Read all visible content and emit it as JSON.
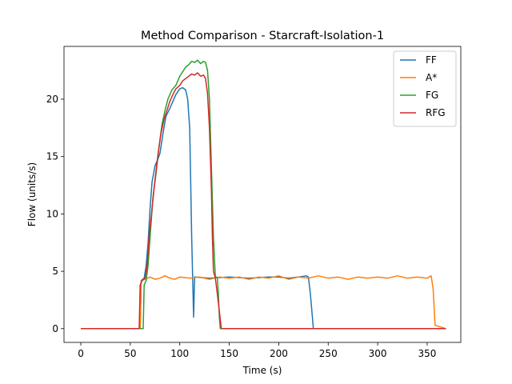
{
  "chart_data": {
    "type": "line",
    "title": "Method Comparison - Starcraft-Isolation-1",
    "xlabel": "Time (s)",
    "ylabel": "Flow (units/s)",
    "xlim": [
      -17,
      384
    ],
    "ylim": [
      -1.2,
      24.6
    ],
    "xticks": [
      0,
      50,
      100,
      150,
      200,
      250,
      300,
      350
    ],
    "yticks": [
      0,
      5,
      10,
      15,
      20
    ],
    "grid": false,
    "legend_position": "top-right",
    "series": [
      {
        "name": "FF",
        "color": "#1f77b4",
        "points": [
          [
            0,
            0
          ],
          [
            60,
            0
          ],
          [
            61,
            4.2
          ],
          [
            64,
            4.4
          ],
          [
            66,
            5.5
          ],
          [
            68,
            7.5
          ],
          [
            70,
            10.5
          ],
          [
            72,
            12.8
          ],
          [
            75,
            14.2
          ],
          [
            78,
            14.8
          ],
          [
            80,
            15.3
          ],
          [
            83,
            17.0
          ],
          [
            86,
            18.5
          ],
          [
            90,
            19.2
          ],
          [
            93,
            19.8
          ],
          [
            96,
            20.4
          ],
          [
            100,
            20.9
          ],
          [
            103,
            21.0
          ],
          [
            106,
            20.8
          ],
          [
            108,
            20.0
          ],
          [
            110,
            17.5
          ],
          [
            111,
            13.0
          ],
          [
            112,
            8.0
          ],
          [
            113,
            4.5
          ],
          [
            114,
            1.0
          ],
          [
            115,
            4.5
          ],
          [
            130,
            4.4
          ],
          [
            150,
            4.5
          ],
          [
            170,
            4.4
          ],
          [
            190,
            4.5
          ],
          [
            200,
            4.5
          ],
          [
            210,
            4.4
          ],
          [
            220,
            4.5
          ],
          [
            228,
            4.6
          ],
          [
            230,
            4.5
          ],
          [
            232,
            3.0
          ],
          [
            234,
            1.0
          ],
          [
            235,
            0
          ],
          [
            369,
            0
          ]
        ]
      },
      {
        "name": "A*",
        "color": "#ff7f0e",
        "points": [
          [
            0,
            0
          ],
          [
            60,
            0
          ],
          [
            61,
            4.2
          ],
          [
            65,
            4.3
          ],
          [
            70,
            4.5
          ],
          [
            75,
            4.3
          ],
          [
            80,
            4.4
          ],
          [
            85,
            4.6
          ],
          [
            90,
            4.4
          ],
          [
            95,
            4.3
          ],
          [
            100,
            4.5
          ],
          [
            110,
            4.4
          ],
          [
            120,
            4.5
          ],
          [
            130,
            4.3
          ],
          [
            140,
            4.5
          ],
          [
            150,
            4.4
          ],
          [
            160,
            4.5
          ],
          [
            170,
            4.3
          ],
          [
            180,
            4.5
          ],
          [
            190,
            4.4
          ],
          [
            200,
            4.6
          ],
          [
            210,
            4.3
          ],
          [
            220,
            4.5
          ],
          [
            230,
            4.4
          ],
          [
            240,
            4.6
          ],
          [
            250,
            4.4
          ],
          [
            260,
            4.5
          ],
          [
            270,
            4.3
          ],
          [
            280,
            4.5
          ],
          [
            290,
            4.4
          ],
          [
            300,
            4.5
          ],
          [
            310,
            4.4
          ],
          [
            320,
            4.6
          ],
          [
            330,
            4.4
          ],
          [
            340,
            4.5
          ],
          [
            350,
            4.4
          ],
          [
            354,
            4.6
          ],
          [
            356,
            3.5
          ],
          [
            357,
            2.0
          ],
          [
            358,
            0.3
          ],
          [
            369,
            0
          ]
        ]
      },
      {
        "name": "FG",
        "color": "#2ca02c",
        "points": [
          [
            0,
            0
          ],
          [
            63,
            0
          ],
          [
            64,
            3.8
          ],
          [
            66,
            4.2
          ],
          [
            68,
            5.5
          ],
          [
            70,
            8.0
          ],
          [
            73,
            11.5
          ],
          [
            76,
            13.5
          ],
          [
            79,
            15.8
          ],
          [
            82,
            17.8
          ],
          [
            85,
            19.0
          ],
          [
            88,
            20.0
          ],
          [
            92,
            20.8
          ],
          [
            96,
            21.2
          ],
          [
            100,
            22.0
          ],
          [
            103,
            22.4
          ],
          [
            106,
            22.8
          ],
          [
            109,
            23.0
          ],
          [
            112,
            23.3
          ],
          [
            115,
            23.2
          ],
          [
            118,
            23.4
          ],
          [
            121,
            23.1
          ],
          [
            124,
            23.3
          ],
          [
            126,
            23.2
          ],
          [
            128,
            22.5
          ],
          [
            130,
            20.0
          ],
          [
            132,
            14.0
          ],
          [
            134,
            8.0
          ],
          [
            136,
            4.5
          ],
          [
            137,
            4.5
          ],
          [
            138,
            4.4
          ],
          [
            139,
            3.0
          ],
          [
            140,
            1.0
          ],
          [
            141,
            0
          ],
          [
            369,
            0
          ]
        ]
      },
      {
        "name": "RFG",
        "color": "#d62728",
        "points": [
          [
            0,
            0
          ],
          [
            59,
            0
          ],
          [
            60,
            3.8
          ],
          [
            62,
            4.2
          ],
          [
            65,
            4.4
          ],
          [
            67,
            5.5
          ],
          [
            69,
            8.0
          ],
          [
            72,
            10.5
          ],
          [
            75,
            13.0
          ],
          [
            78,
            15.2
          ],
          [
            81,
            17.0
          ],
          [
            84,
            18.2
          ],
          [
            87,
            19.0
          ],
          [
            90,
            19.8
          ],
          [
            93,
            20.4
          ],
          [
            96,
            20.9
          ],
          [
            100,
            21.2
          ],
          [
            103,
            21.6
          ],
          [
            106,
            21.8
          ],
          [
            109,
            22.0
          ],
          [
            112,
            22.2
          ],
          [
            115,
            22.1
          ],
          [
            118,
            22.3
          ],
          [
            121,
            22.0
          ],
          [
            124,
            22.1
          ],
          [
            126,
            21.8
          ],
          [
            128,
            20.5
          ],
          [
            130,
            17.5
          ],
          [
            132,
            12.0
          ],
          [
            133,
            8.0
          ],
          [
            134,
            5.0
          ],
          [
            136,
            4.4
          ],
          [
            138,
            3.0
          ],
          [
            140,
            1.5
          ],
          [
            142,
            0
          ],
          [
            369,
            0
          ]
        ]
      }
    ]
  }
}
